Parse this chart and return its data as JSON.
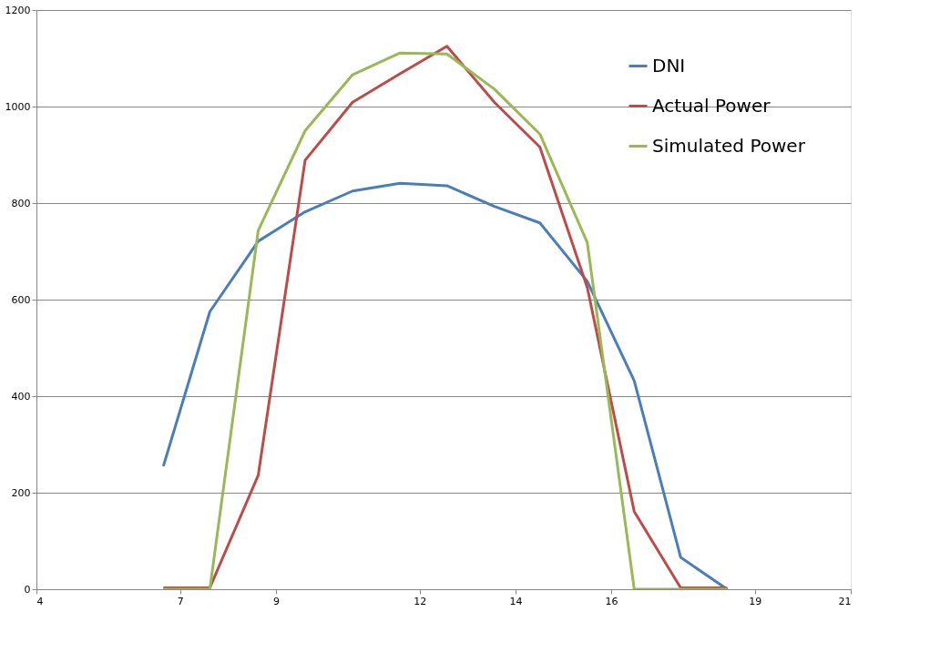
{
  "chart_data": {
    "type": "line",
    "x": [
      6.65,
      7.62,
      8.63,
      9.61,
      10.6,
      11.59,
      12.57,
      13.56,
      14.51,
      15.5,
      16.48,
      17.45,
      18.42
    ],
    "series": [
      {
        "name": "DNI",
        "color": "#4a7ebb",
        "values": [
          255,
          575,
          721,
          782,
          825,
          841,
          836,
          793,
          759,
          638,
          432,
          66,
          0
        ]
      },
      {
        "name": "Actual Power",
        "color": "#be4b48",
        "values": [
          3,
          3,
          236,
          889,
          1009,
          1068,
          1125,
          1009,
          916,
          625,
          161,
          3,
          3
        ]
      },
      {
        "name": "Simulated Power",
        "color": "#98b954",
        "values": [
          0,
          0,
          743,
          950,
          1066,
          1111,
          1109,
          1036,
          943,
          718,
          0,
          0,
          0
        ]
      }
    ],
    "xlim": [
      4,
      21
    ],
    "xticks": [
      4,
      7,
      9,
      12,
      14,
      16,
      19,
      21
    ],
    "ylim": [
      0,
      1200
    ],
    "yticks": [
      0,
      200,
      400,
      600,
      800,
      1000,
      1200
    ],
    "grid": "y",
    "legend": "top right",
    "marker": "none",
    "line_style": "solid"
  }
}
